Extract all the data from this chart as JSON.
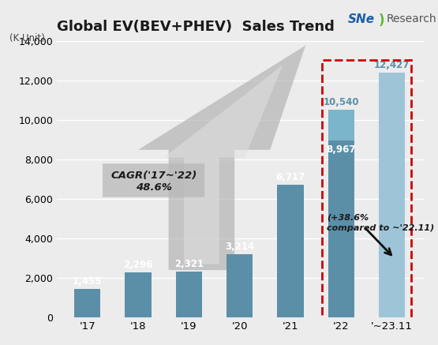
{
  "title": "Global EV(BEV+PHEV)  Sales Trend",
  "ylabel": "(K Unit)",
  "categories": [
    "'17",
    "'18",
    "'19",
    "'20",
    "'21",
    "'22",
    "'~23.11"
  ],
  "values": [
    1455,
    2296,
    2321,
    3214,
    6717,
    10540,
    12427
  ],
  "value_22_11": 8967,
  "bar_color_main": "#5b8fa8",
  "bar_color_22_top": "#7ab5cc",
  "bar_color_23": "#9ec4d8",
  "ylim": [
    0,
    14000
  ],
  "yticks": [
    0,
    2000,
    4000,
    6000,
    8000,
    10000,
    12000,
    14000
  ],
  "background_color": "#ececec",
  "grid_color": "#ffffff",
  "title_fontsize": 13,
  "bar_label_fontsize": 8.5,
  "cagr_text_line1": "CAGR('17~'22)",
  "cagr_text_line2": "48.6%",
  "annotation_text": "(+38.6%\ncompared to ~'22.11)",
  "dashed_box_color": "#cc0000",
  "arrow_color": "#111111",
  "arrow_gray": "#aaaaaa",
  "cagr_box_color": "#b8b8b8"
}
